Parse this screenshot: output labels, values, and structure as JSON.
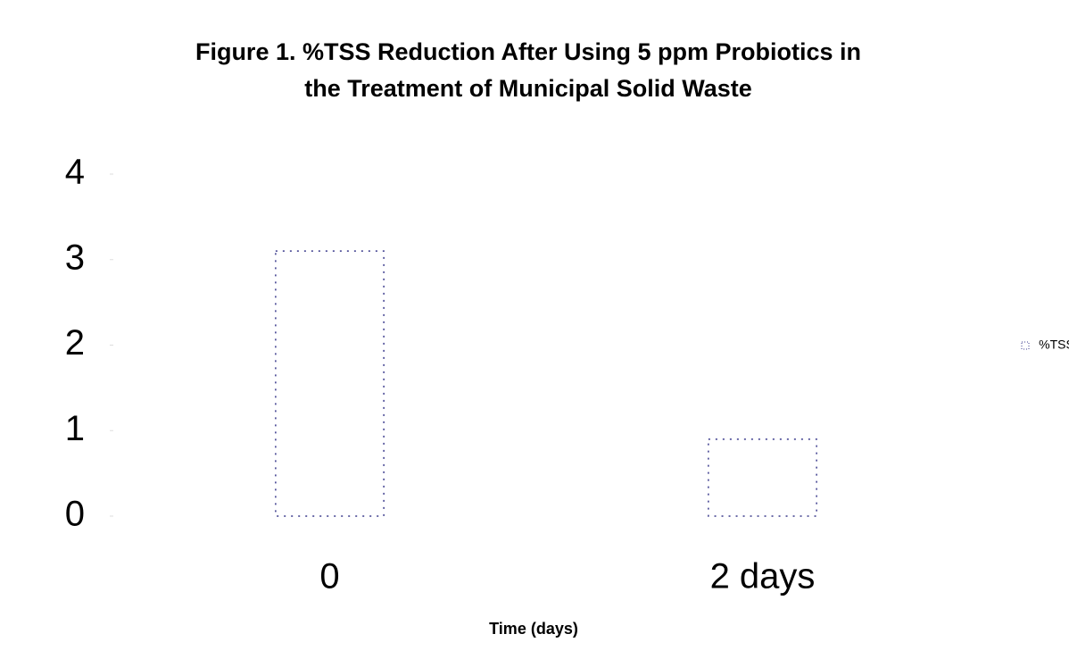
{
  "chart_data": {
    "type": "bar",
    "title": [
      "Figure 1. %TSS Reduction After Using 5 ppm Probiotics in",
      "the Treatment of Municipal Solid Waste"
    ],
    "x_label": "Time (days)",
    "categories": [
      "0",
      "2 days"
    ],
    "series": [
      {
        "name": "%TSS",
        "color": "#3a3a8c",
        "values": [
          3.1,
          0.9
        ]
      }
    ],
    "ylim": [
      0,
      4
    ],
    "yticks": [
      0,
      1,
      2,
      3,
      4
    ],
    "legend": "right"
  }
}
